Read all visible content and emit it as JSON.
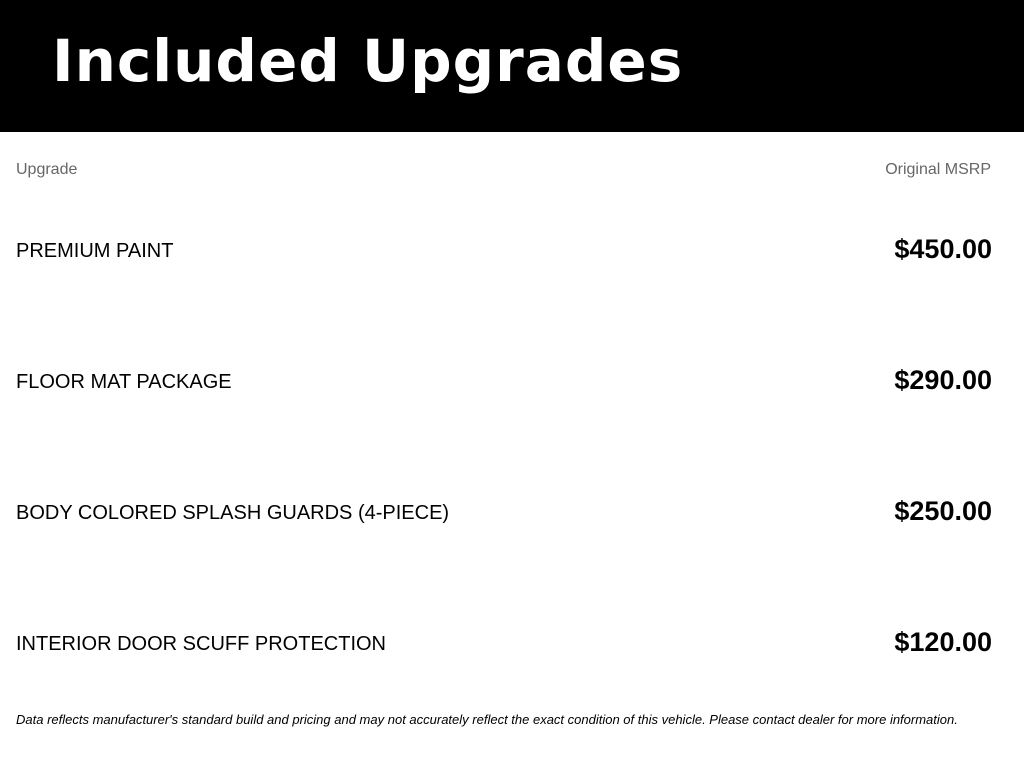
{
  "header": {
    "title": "Included Upgrades"
  },
  "columns": {
    "upgrade": "Upgrade",
    "msrp": "Original MSRP"
  },
  "items": [
    {
      "name": "PREMIUM PAINT",
      "price": "$450.00"
    },
    {
      "name": "FLOOR MAT PACKAGE",
      "price": "$290.00"
    },
    {
      "name": "BODY COLORED SPLASH GUARDS (4-PIECE)",
      "price": "$250.00"
    },
    {
      "name": "INTERIOR DOOR SCUFF PROTECTION",
      "price": "$120.00"
    }
  ],
  "disclaimer": "Data reflects manufacturer's standard build and pricing and may not accurately reflect the exact condition of this vehicle. Please contact dealer for more information."
}
